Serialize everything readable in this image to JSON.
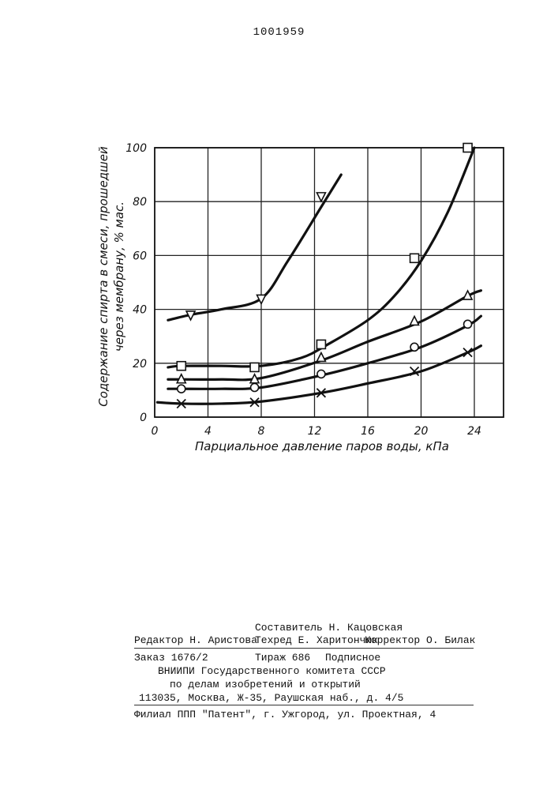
{
  "page": {
    "patent_number": "1001959"
  },
  "chart_data": {
    "type": "line",
    "xlabel": "Парциальное давление паров воды, кПа",
    "ylabel_line1": "Содержание спирта в смеси, прошедшей",
    "ylabel_line2": "через мембрану, % мас.",
    "x_ticks": [
      0,
      4,
      8,
      12,
      16,
      20,
      24
    ],
    "y_ticks": [
      0,
      20,
      40,
      60,
      80,
      100
    ],
    "xlim": [
      0,
      25
    ],
    "ylim": [
      0,
      100
    ],
    "grid": true,
    "series": [
      {
        "marker": "triangle-down",
        "curve_x": [
          1,
          2.7,
          5,
          8,
          10,
          12.5,
          14
        ],
        "curve_y": [
          36,
          38,
          40,
          44,
          58,
          78,
          90
        ],
        "points_x": [
          2.7,
          8,
          12.5
        ],
        "points_y": [
          38,
          44,
          82
        ]
      },
      {
        "marker": "square",
        "curve_x": [
          1,
          2,
          5,
          8,
          11,
          13,
          16,
          18,
          20,
          22,
          24
        ],
        "curve_y": [
          18.5,
          19,
          19,
          19,
          22,
          27,
          36,
          45,
          58,
          76,
          100
        ],
        "points_x": [
          2,
          7.5,
          12.5,
          19.5,
          23.5
        ],
        "points_y": [
          19,
          18.5,
          27,
          59,
          100
        ]
      },
      {
        "marker": "triangle-up",
        "curve_x": [
          1,
          2,
          5,
          8,
          12.5,
          16,
          20,
          23.5,
          24.5
        ],
        "curve_y": [
          14,
          14,
          14,
          14.5,
          21,
          28,
          35.5,
          45,
          47
        ],
        "points_x": [
          2,
          7.5,
          12.5,
          19.5,
          23.5
        ],
        "points_y": [
          14,
          14,
          22,
          35.5,
          45
        ]
      },
      {
        "marker": "circle",
        "curve_x": [
          1,
          2,
          5,
          8,
          12.5,
          16,
          20,
          23.5,
          24.5
        ],
        "curve_y": [
          10.5,
          10.5,
          10.5,
          11,
          15.5,
          20,
          26,
          34,
          37.5
        ],
        "points_x": [
          2,
          7.5,
          12.5,
          19.5,
          23.5
        ],
        "points_y": [
          10.5,
          11,
          16,
          26,
          34.5
        ]
      },
      {
        "marker": "x",
        "curve_x": [
          0.2,
          2,
          5,
          8,
          12.5,
          16,
          20,
          23.5,
          24.5
        ],
        "curve_y": [
          5.5,
          5,
          5,
          5.8,
          9,
          12.5,
          17,
          24,
          26.5
        ],
        "points_x": [
          2,
          7.5,
          12.5,
          19.5,
          23.5
        ],
        "points_y": [
          5,
          5.5,
          9,
          17,
          24
        ]
      }
    ]
  },
  "imprint": {
    "compiler": "Составитель Н. Кацовская",
    "editor": "Редактор Н. Аристова",
    "techred": "Техред Е. Харитончик",
    "corrector": "Корректор О. Билак",
    "order": "Заказ 1676/2",
    "circulation": "Тираж 686",
    "subscription": "Подписное",
    "institute": "ВНИИПИ Государственного комитета СССР",
    "institute_dept": "по делам изобретений и открытий",
    "address": "113035, Москва, Ж-35, Раушская наб., д. 4/5",
    "branch": "Филиал ППП \"Патент\", г. Ужгород, ул. Проектная, 4"
  }
}
